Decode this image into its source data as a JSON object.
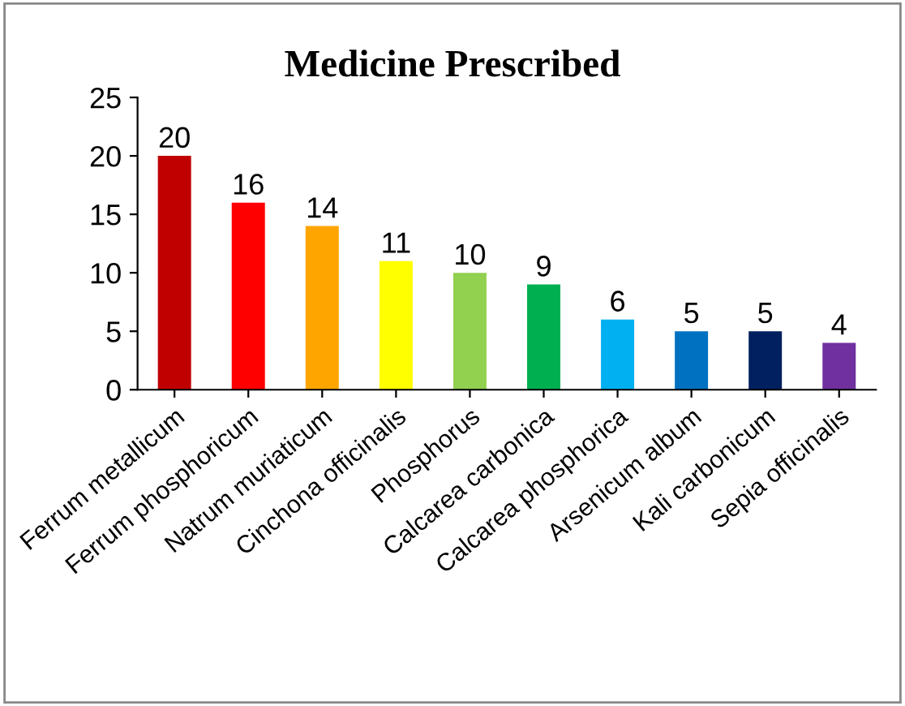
{
  "chart_data": {
    "type": "bar",
    "title": "Medicine Prescribed",
    "categories": [
      "Ferrum metallicum",
      "Ferrum phosphoricum",
      "Natrum muriaticum",
      "Cinchona officinalis",
      "Phosphorus",
      "Calcarea carbonica",
      "Calcarea phosphorica",
      "Arsenicum album",
      "Kali carbonicum",
      "Sepia officinalis"
    ],
    "values": [
      20,
      16,
      14,
      11,
      10,
      9,
      6,
      5,
      5,
      4
    ],
    "colors": [
      "#c00000",
      "#ff0000",
      "#ffa500",
      "#ffff00",
      "#92d050",
      "#00b050",
      "#00b0f0",
      "#0070c0",
      "#002060",
      "#7030a0"
    ],
    "ylim": [
      0,
      25
    ],
    "yticks": [
      0,
      5,
      10,
      15,
      20,
      25
    ],
    "grid": false,
    "legend": false,
    "data_labels": true
  }
}
